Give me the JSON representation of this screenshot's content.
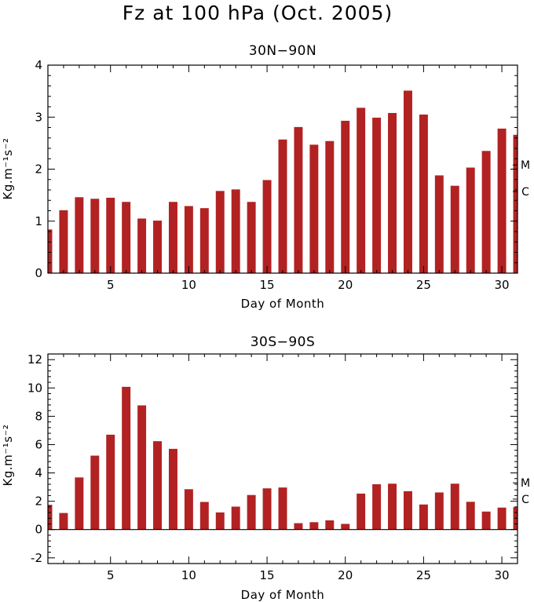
{
  "figure_title": "Fz at 100 hPa (Oct. 2005)",
  "chart_data": [
    {
      "type": "bar",
      "title": "30N−90N",
      "xlabel": "Day of Month",
      "ylabel": "Kg.m⁻¹s⁻²",
      "xlim": [
        1,
        31
      ],
      "ylim": [
        0,
        4
      ],
      "xticks": [
        5,
        10,
        15,
        20,
        25,
        30
      ],
      "yticks": [
        0,
        1,
        2,
        3,
        4
      ],
      "bar_color": "#B22222",
      "categories": [
        1,
        2,
        3,
        4,
        5,
        6,
        7,
        8,
        9,
        10,
        11,
        12,
        13,
        14,
        15,
        16,
        17,
        18,
        19,
        20,
        21,
        22,
        23,
        24,
        25,
        26,
        27,
        28,
        29,
        30,
        31
      ],
      "values": [
        0.84,
        1.21,
        1.46,
        1.43,
        1.45,
        1.37,
        1.05,
        1.01,
        1.37,
        1.29,
        1.25,
        1.58,
        1.61,
        1.37,
        1.79,
        2.57,
        2.81,
        2.47,
        2.54,
        2.93,
        3.18,
        2.99,
        3.08,
        3.51,
        3.05,
        1.88,
        1.68,
        2.03,
        2.35,
        2.78,
        2.66
      ],
      "markers": [
        {
          "label": "M",
          "value": 2.08
        },
        {
          "label": "C",
          "value": 1.57
        }
      ]
    },
    {
      "type": "bar",
      "title": "30S−90S",
      "xlabel": "Day of Month",
      "ylabel": "Kg.m⁻¹s⁻²",
      "xlim": [
        1,
        31
      ],
      "ylim": [
        -2.4,
        12.4
      ],
      "xticks": [
        5,
        10,
        15,
        20,
        25,
        30
      ],
      "yticks": [
        -2,
        0,
        2,
        4,
        6,
        8,
        10,
        12
      ],
      "bar_color": "#B22222",
      "categories": [
        1,
        2,
        3,
        4,
        5,
        6,
        7,
        8,
        9,
        10,
        11,
        12,
        13,
        14,
        15,
        16,
        17,
        18,
        19,
        20,
        21,
        22,
        23,
        24,
        25,
        26,
        27,
        28,
        29,
        30,
        31
      ],
      "values": [
        1.75,
        1.17,
        3.68,
        5.22,
        6.7,
        10.08,
        8.77,
        6.24,
        5.7,
        2.85,
        1.95,
        1.21,
        1.62,
        2.44,
        2.91,
        2.97,
        0.45,
        0.52,
        0.65,
        0.4,
        2.54,
        3.2,
        3.24,
        2.71,
        1.77,
        2.62,
        3.24,
        1.96,
        1.27,
        1.55,
        1.58
      ],
      "markers": [
        {
          "label": "M",
          "value": 3.3
        },
        {
          "label": "C",
          "value": 2.15
        }
      ]
    }
  ]
}
